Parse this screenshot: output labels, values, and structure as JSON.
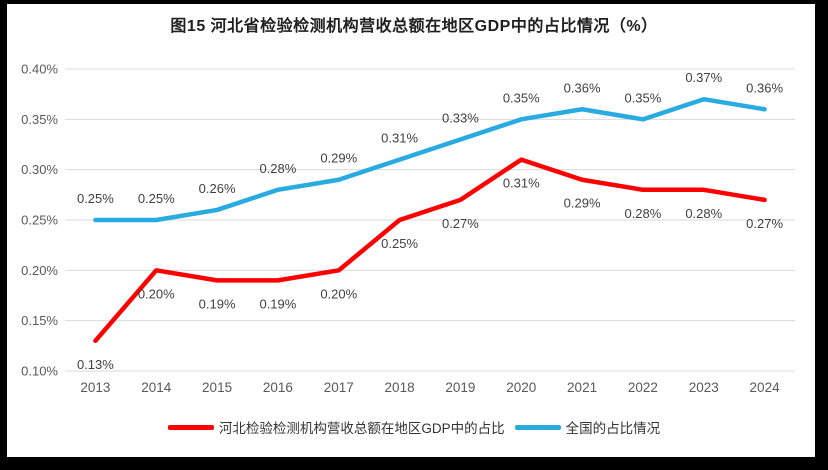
{
  "chart_data": {
    "type": "line",
    "title": "图15 河北省检验检测机构营收总额在地区GDP中的占比情况（%）",
    "categories": [
      "2013",
      "2014",
      "2015",
      "2016",
      "2017",
      "2018",
      "2019",
      "2020",
      "2021",
      "2022",
      "2023",
      "2024"
    ],
    "series": [
      {
        "name": "河北检验检测机构营收总额在地区GDP中的占比",
        "color": "#ff0000",
        "values": [
          0.13,
          0.2,
          0.19,
          0.19,
          0.2,
          0.25,
          0.27,
          0.31,
          0.29,
          0.28,
          0.28,
          0.27
        ],
        "labels": [
          "0.13%",
          "0.20%",
          "0.19%",
          "0.19%",
          "0.20%",
          "0.25%",
          "0.27%",
          "0.31%",
          "0.29%",
          "0.28%",
          "0.28%",
          "0.27%"
        ],
        "label_position": "below"
      },
      {
        "name": "全国的占比情况",
        "color": "#29abe2",
        "values": [
          0.25,
          0.25,
          0.26,
          0.28,
          0.29,
          0.31,
          0.33,
          0.35,
          0.36,
          0.35,
          0.37,
          0.36
        ],
        "labels": [
          "0.25%",
          "0.25%",
          "0.26%",
          "0.28%",
          "0.29%",
          "0.31%",
          "0.33%",
          "0.35%",
          "0.36%",
          "0.35%",
          "0.37%",
          "0.36%"
        ],
        "label_position": "above"
      }
    ],
    "y_axis": {
      "min": 0.1,
      "max": 0.4,
      "ticks": [
        {
          "value": 0.1,
          "label": "0.10%"
        },
        {
          "value": 0.15,
          "label": "0.15%"
        },
        {
          "value": 0.2,
          "label": "0.20%"
        },
        {
          "value": 0.25,
          "label": "0.25%"
        },
        {
          "value": 0.3,
          "label": "0.30%"
        },
        {
          "value": 0.35,
          "label": "0.35%"
        },
        {
          "value": 0.4,
          "label": "0.40%"
        }
      ]
    },
    "grid": true,
    "legend_position": "bottom",
    "colors": {
      "gridline": "#d9d9d9",
      "axis_text": "#595959",
      "data_label_text": "#404040",
      "title_text": "#1f1f1f",
      "background": "#ffffff",
      "frame": "#000000"
    }
  }
}
